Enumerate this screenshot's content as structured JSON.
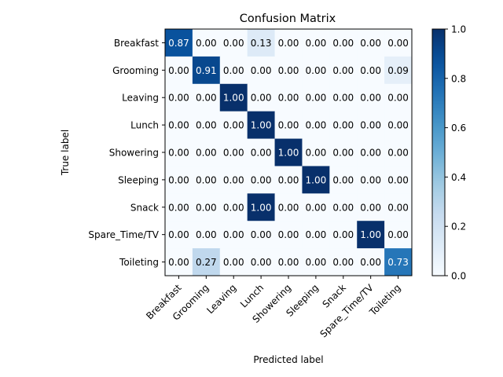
{
  "chart_data": {
    "type": "heatmap",
    "title": "Confusion Matrix",
    "xlabel": "Predicted label",
    "ylabel": "True label",
    "row_labels": [
      "Breakfast",
      "Grooming",
      "Leaving",
      "Lunch",
      "Showering",
      "Sleeping",
      "Snack",
      "Spare_Time/TV",
      "Toileting"
    ],
    "col_labels": [
      "Breakfast",
      "Grooming",
      "Leaving",
      "Lunch",
      "Showering",
      "Sleeping",
      "Snack",
      "Spare_Time/TV",
      "Toileting"
    ],
    "values": [
      [
        0.87,
        0.0,
        0.0,
        0.13,
        0.0,
        0.0,
        0.0,
        0.0,
        0.0
      ],
      [
        0.0,
        0.91,
        0.0,
        0.0,
        0.0,
        0.0,
        0.0,
        0.0,
        0.09
      ],
      [
        0.0,
        0.0,
        1.0,
        0.0,
        0.0,
        0.0,
        0.0,
        0.0,
        0.0
      ],
      [
        0.0,
        0.0,
        0.0,
        1.0,
        0.0,
        0.0,
        0.0,
        0.0,
        0.0
      ],
      [
        0.0,
        0.0,
        0.0,
        0.0,
        1.0,
        0.0,
        0.0,
        0.0,
        0.0
      ],
      [
        0.0,
        0.0,
        0.0,
        0.0,
        0.0,
        1.0,
        0.0,
        0.0,
        0.0
      ],
      [
        0.0,
        0.0,
        0.0,
        1.0,
        0.0,
        0.0,
        0.0,
        0.0,
        0.0
      ],
      [
        0.0,
        0.0,
        0.0,
        0.0,
        0.0,
        0.0,
        0.0,
        1.0,
        0.0
      ],
      [
        0.0,
        0.27,
        0.0,
        0.0,
        0.0,
        0.0,
        0.0,
        0.0,
        0.73
      ]
    ],
    "cell_labels": [
      [
        "0.87",
        "0.00",
        "0.00",
        "0.13",
        "0.00",
        "0.00",
        "0.00",
        "0.00",
        "0.00"
      ],
      [
        "0.00",
        "0.91",
        "0.00",
        "0.00",
        "0.00",
        "0.00",
        "0.00",
        "0.00",
        "0.09"
      ],
      [
        "0.00",
        "0.00",
        "1.00",
        "0.00",
        "0.00",
        "0.00",
        "0.00",
        "0.00",
        "0.00"
      ],
      [
        "0.00",
        "0.00",
        "0.00",
        "1.00",
        "0.00",
        "0.00",
        "0.00",
        "0.00",
        "0.00"
      ],
      [
        "0.00",
        "0.00",
        "0.00",
        "0.00",
        "1.00",
        "0.00",
        "0.00",
        "0.00",
        "0.00"
      ],
      [
        "0.00",
        "0.00",
        "0.00",
        "0.00",
        "0.00",
        "1.00",
        "0.00",
        "0.00",
        "0.00"
      ],
      [
        "0.00",
        "0.00",
        "0.00",
        "1.00",
        "0.00",
        "0.00",
        "0.00",
        "0.00",
        "0.00"
      ],
      [
        "0.00",
        "0.00",
        "0.00",
        "0.00",
        "0.00",
        "0.00",
        "0.00",
        "1.00",
        "0.00"
      ],
      [
        "0.00",
        "0.27",
        "0.00",
        "0.00",
        "0.00",
        "0.00",
        "0.00",
        "0.00",
        "0.73"
      ]
    ],
    "colormap": "Blues",
    "color_range": [
      0.0,
      1.0
    ],
    "colorbar_ticks": [
      0.0,
      0.2,
      0.4,
      0.6,
      0.8,
      1.0
    ],
    "colorbar_tick_labels": [
      "0.0",
      "0.2",
      "0.4",
      "0.6",
      "0.8",
      "1.0"
    ],
    "colors": {
      "low": "#f7fbff",
      "high": "#08306b",
      "text_dark": "#000000",
      "text_light": "#ffffff"
    },
    "grid": false,
    "legend": "colorbar-right"
  }
}
